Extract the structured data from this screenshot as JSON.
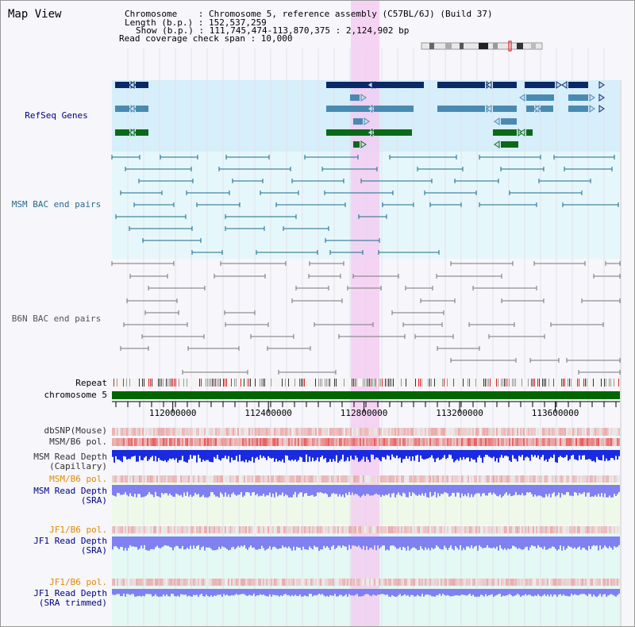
{
  "view_title": "Map View",
  "info": {
    "chromosome": "Chromosome    : Chromosome 5, reference assembly (C57BL/6J) (Build 37)",
    "length": "Length (b.p.) : 152,537,259",
    "show": "Show (b.p.) : 111,745,474-113,870,375 : 2,124,902 bp",
    "coverage": "Read coverage check span : 10,000"
  },
  "tracks": {
    "refseq": "RefSeq Genes",
    "msm_bac": "MSM BAC end pairs",
    "b6n_bac": "B6N BAC end pairs",
    "repeat": "Repeat",
    "chromosome": "chromosome 5",
    "dbsnp": "dbSNP(Mouse)",
    "msm_b6_pol": "MSM/B6 pol.",
    "msm_read_depth_cap": "MSM Read Depth\n(Capillary)",
    "msm_b6_pol_2": "MSM/B6 pol.",
    "msm_read_depth_sra": "MSM Read Depth\n(SRA)",
    "jf1_b6_pol": "JF1/B6 pol.",
    "jf1_read_depth_sra": "JF1 Read Depth\n(SRA)",
    "jf1_b6_pol_2": "JF1/B6 pol.",
    "jf1_read_depth_trimmed": "JF1 Read Depth\n(SRA trimmed)"
  },
  "axis": {
    "tick_labels": [
      "112000000",
      "112400000",
      "112800000",
      "113200000",
      "113600000"
    ],
    "tick_values": [
      112000000,
      112400000,
      112800000,
      113200000,
      113600000
    ],
    "range": [
      111745474,
      113870375
    ]
  },
  "selection": {
    "start": 112745000,
    "end": 112865000
  },
  "colors": {
    "refseq_navy": "#0a2a66",
    "refseq_blue": "#4a8ab0",
    "refseq_green": "#0a6a1a",
    "msm_bac": "#1a6a8a",
    "b6n_bac": "#777777",
    "chromosome": "#006600",
    "highlight": "#f4c8f0",
    "depth_capillary": "#1a2ae0",
    "depth_sra": "#8080f0",
    "pol_red": "#e03030"
  },
  "icons": {
    "ideogram": "chromosome-ideogram-icon"
  }
}
